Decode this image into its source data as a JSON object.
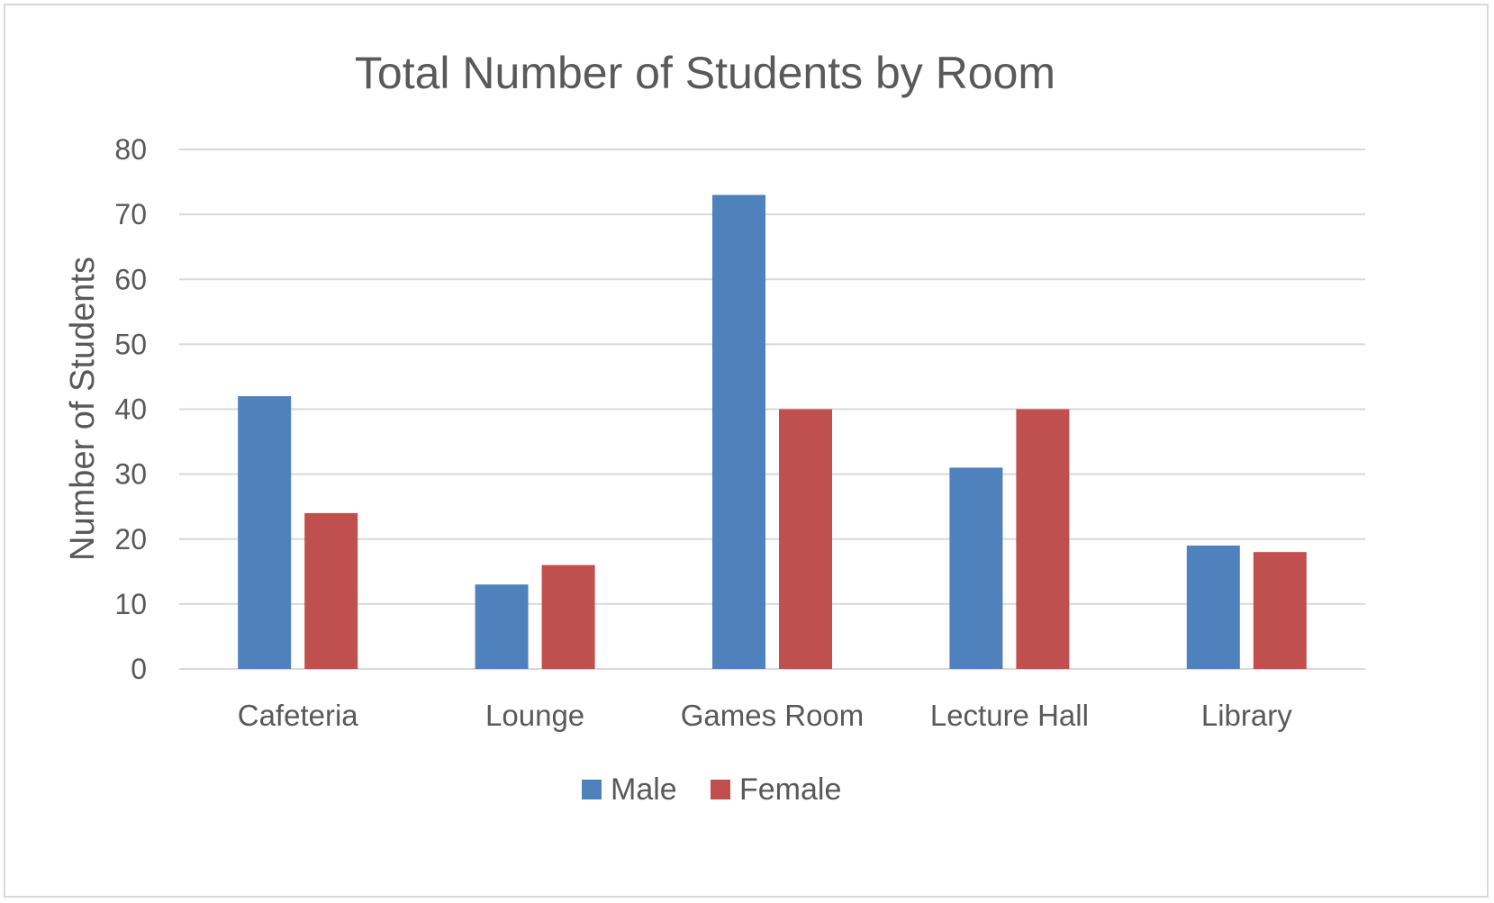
{
  "chart_data": {
    "type": "bar",
    "title": "Total Number of Students by Room",
    "xlabel": "",
    "ylabel": "Number of Students",
    "categories": [
      "Cafeteria",
      "Lounge",
      "Games Room",
      "Lecture Hall",
      "Library"
    ],
    "series": [
      {
        "name": "Male",
        "color": "#4f81bd",
        "values": [
          42,
          13,
          73,
          31,
          19
        ]
      },
      {
        "name": "Female",
        "color": "#c0504d",
        "values": [
          24,
          16,
          40,
          40,
          18
        ]
      }
    ],
    "ylim": [
      0,
      80
    ],
    "yticks": [
      0,
      10,
      20,
      30,
      40,
      50,
      60,
      70,
      80
    ],
    "grid": true,
    "legend_position": "bottom"
  }
}
